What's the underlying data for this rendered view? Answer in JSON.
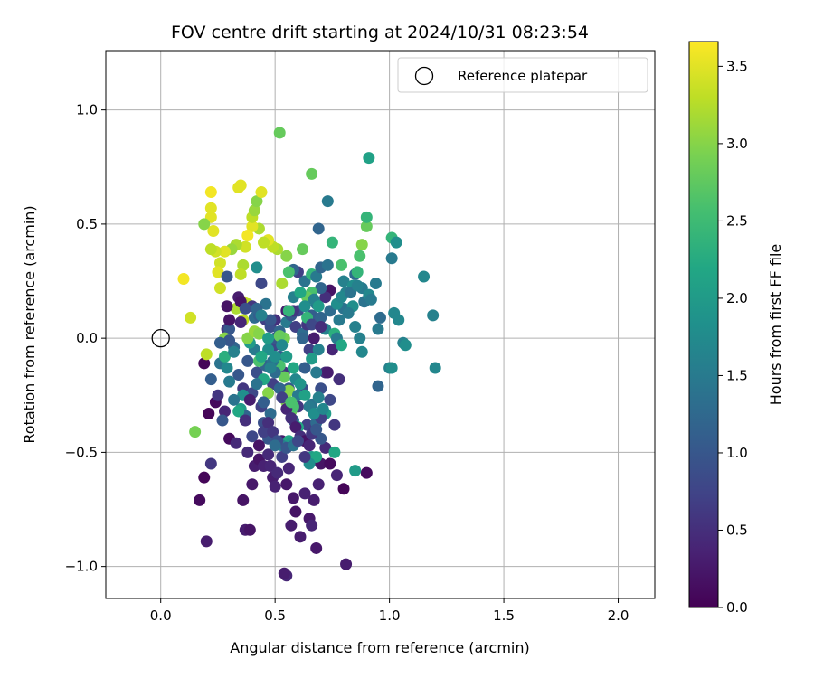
{
  "chart_data": {
    "type": "scatter",
    "title": "FOV centre drift starting at 2024/10/31 08:23:54",
    "xlabel": "Angular distance from reference (arcmin)",
    "ylabel": "Rotation from reference (arcmin)",
    "xlim": [
      -0.24,
      2.16
    ],
    "ylim": [
      -1.14,
      1.26
    ],
    "xticks": [
      0.0,
      0.5,
      1.0,
      1.5,
      2.0
    ],
    "xtick_labels": [
      "0.0",
      "0.5",
      "1.0",
      "1.5",
      "2.0"
    ],
    "yticks": [
      -1.0,
      -0.5,
      0.0,
      0.5,
      1.0
    ],
    "ytick_labels": [
      "−1.0",
      "−0.5",
      "0.0",
      "0.5",
      "1.0"
    ],
    "grid": true,
    "legend": {
      "placement": "top-right",
      "entries": [
        "Reference platepar"
      ]
    },
    "reference_point": {
      "x": 0.0,
      "y": 0.0
    },
    "colorbar": {
      "label": "Hours from first FF file",
      "min": 0.0,
      "max": 3.66,
      "ticks": [
        0.0,
        0.5,
        1.0,
        1.5,
        2.0,
        2.5,
        3.0,
        3.5
      ],
      "tick_labels": [
        "0.0",
        "0.5",
        "1.0",
        "1.5",
        "2.0",
        "2.5",
        "3.0",
        "3.5"
      ],
      "colormap": "viridis"
    },
    "points": [
      [
        0.19,
        -0.61,
        0.05
      ],
      [
        0.17,
        -0.71,
        0.1
      ],
      [
        0.2,
        -0.89,
        0.3
      ],
      [
        0.22,
        -0.55,
        0.6
      ],
      [
        0.19,
        -0.11,
        0.05
      ],
      [
        0.21,
        -0.33,
        0.05
      ],
      [
        0.24,
        -0.28,
        0.1
      ],
      [
        0.25,
        -0.25,
        0.6
      ],
      [
        0.28,
        -0.32,
        0.4
      ],
      [
        0.3,
        -0.44,
        0.1
      ],
      [
        0.33,
        -0.46,
        0.45
      ],
      [
        0.36,
        -0.71,
        0.2
      ],
      [
        0.37,
        -0.84,
        0.3
      ],
      [
        0.39,
        -0.84,
        0.2
      ],
      [
        0.4,
        -0.64,
        0.25
      ],
      [
        0.38,
        -0.5,
        0.45
      ],
      [
        0.41,
        -0.56,
        0.3
      ],
      [
        0.43,
        -0.53,
        0.2
      ],
      [
        0.45,
        -0.56,
        0.35
      ],
      [
        0.47,
        -0.51,
        0.45
      ],
      [
        0.48,
        -0.56,
        0.4
      ],
      [
        0.49,
        -0.61,
        0.3
      ],
      [
        0.51,
        -0.59,
        0.45
      ],
      [
        0.5,
        -0.65,
        0.35
      ],
      [
        0.53,
        -0.45,
        0.3
      ],
      [
        0.55,
        -0.64,
        0.25
      ],
      [
        0.56,
        -0.57,
        0.4
      ],
      [
        0.58,
        -0.7,
        0.25
      ],
      [
        0.57,
        -0.82,
        0.3
      ],
      [
        0.59,
        -0.76,
        0.2
      ],
      [
        0.61,
        -0.87,
        0.3
      ],
      [
        0.63,
        -0.68,
        0.35
      ],
      [
        0.65,
        -0.79,
        0.25
      ],
      [
        0.66,
        -0.82,
        0.4
      ],
      [
        0.68,
        -0.92,
        0.25
      ],
      [
        0.67,
        -0.71,
        0.3
      ],
      [
        0.69,
        -0.64,
        0.35
      ],
      [
        0.7,
        -0.55,
        0.2
      ],
      [
        0.72,
        -0.48,
        0.45
      ],
      [
        0.74,
        -0.55,
        0.1
      ],
      [
        0.77,
        -0.6,
        0.4
      ],
      [
        0.8,
        -0.66,
        0.05
      ],
      [
        0.81,
        -0.99,
        0.3
      ],
      [
        0.55,
        -1.04,
        0.4
      ],
      [
        0.54,
        -1.03,
        0.3
      ],
      [
        0.9,
        -0.59,
        0.1
      ],
      [
        0.85,
        -0.58,
        2.0
      ],
      [
        0.76,
        -0.5,
        2.2
      ],
      [
        0.66,
        -0.52,
        2.0
      ],
      [
        0.68,
        -0.52,
        2.2
      ],
      [
        0.65,
        -0.55,
        1.8
      ],
      [
        0.56,
        -0.45,
        2.2
      ],
      [
        0.57,
        -0.46,
        2.0
      ],
      [
        0.53,
        -0.47,
        1.6
      ],
      [
        0.15,
        -0.41,
        2.9
      ],
      [
        0.2,
        -0.07,
        3.3
      ],
      [
        0.22,
        -0.18,
        1.1
      ],
      [
        0.26,
        -0.11,
        1.4
      ],
      [
        0.28,
        -0.08,
        2.3
      ],
      [
        0.29,
        0.04,
        0.6
      ],
      [
        0.3,
        0.04,
        1.0
      ],
      [
        0.32,
        -0.04,
        1.2
      ],
      [
        0.34,
        -0.16,
        1.0
      ],
      [
        0.36,
        -0.22,
        0.6
      ],
      [
        0.35,
        -0.31,
        2.0
      ],
      [
        0.37,
        -0.34,
        1.2
      ],
      [
        0.4,
        -0.24,
        0.8
      ],
      [
        0.38,
        -0.1,
        1.0
      ],
      [
        0.42,
        -0.15,
        0.9
      ],
      [
        0.44,
        -0.3,
        0.7
      ],
      [
        0.45,
        -0.37,
        0.9
      ],
      [
        0.47,
        -0.44,
        1.0
      ],
      [
        0.48,
        -0.33,
        1.3
      ],
      [
        0.49,
        -0.2,
        0.7
      ],
      [
        0.46,
        -0.12,
        1.2
      ],
      [
        0.5,
        -0.03,
        0.8
      ],
      [
        0.52,
        -0.08,
        1.1
      ],
      [
        0.54,
        -0.15,
        0.6
      ],
      [
        0.56,
        -0.22,
        1.0
      ],
      [
        0.57,
        -0.29,
        0.8
      ],
      [
        0.58,
        -0.36,
        1.2
      ],
      [
        0.6,
        -0.3,
        0.6
      ],
      [
        0.62,
        -0.22,
        0.9
      ],
      [
        0.63,
        -0.13,
        1.1
      ],
      [
        0.65,
        -0.05,
        0.7
      ],
      [
        0.64,
        -0.38,
        0.7
      ],
      [
        0.66,
        -0.29,
        1.4
      ],
      [
        0.68,
        -0.37,
        1.3
      ],
      [
        0.7,
        -0.22,
        0.9
      ],
      [
        0.72,
        -0.15,
        0.5
      ],
      [
        0.74,
        -0.27,
        0.8
      ],
      [
        0.76,
        -0.38,
        0.6
      ],
      [
        0.78,
        -0.18,
        0.5
      ],
      [
        0.72,
        -0.33,
        2.0
      ],
      [
        0.7,
        -0.44,
        1.0
      ],
      [
        0.6,
        -0.39,
        2.2
      ],
      [
        0.55,
        -0.28,
        3.0
      ],
      [
        0.57,
        -0.32,
        2.8
      ],
      [
        0.58,
        -0.3,
        2.6
      ],
      [
        0.56,
        -0.23,
        3.0
      ],
      [
        0.54,
        -0.17,
        2.8
      ],
      [
        0.52,
        -0.12,
        2.6
      ],
      [
        0.47,
        -0.24,
        3.0
      ],
      [
        0.45,
        -0.18,
        2.2
      ],
      [
        0.43,
        -0.1,
        2.6
      ],
      [
        0.41,
        -0.05,
        1.5
      ],
      [
        0.39,
        -0.02,
        2.0
      ],
      [
        0.36,
        -0.25,
        1.8
      ],
      [
        0.34,
        -0.32,
        2.2
      ],
      [
        0.32,
        -0.27,
        1.4
      ],
      [
        0.3,
        -0.19,
        1.5
      ],
      [
        0.27,
        -0.36,
        1.0
      ],
      [
        0.38,
        0.0,
        3.0
      ],
      [
        0.41,
        0.03,
        3.1
      ],
      [
        0.36,
        0.08,
        3.3
      ],
      [
        0.33,
        0.13,
        3.2
      ],
      [
        0.36,
        0.16,
        3.4
      ],
      [
        0.38,
        0.15,
        3.3
      ],
      [
        0.41,
        0.09,
        1.3
      ],
      [
        0.43,
        0.1,
        1.1
      ],
      [
        0.46,
        0.08,
        0.7
      ],
      [
        0.48,
        0.05,
        0.9
      ],
      [
        0.5,
        0.0,
        1.0
      ],
      [
        0.52,
        0.03,
        1.2
      ],
      [
        0.54,
        0.0,
        2.9
      ],
      [
        0.55,
        0.07,
        1.5
      ],
      [
        0.57,
        0.1,
        1.0
      ],
      [
        0.59,
        0.05,
        0.7
      ],
      [
        0.6,
        0.12,
        0.9
      ],
      [
        0.62,
        0.02,
        1.3
      ],
      [
        0.64,
        0.06,
        0.6
      ],
      [
        0.66,
        0.1,
        1.1
      ],
      [
        0.68,
        0.15,
        1.4
      ],
      [
        0.7,
        0.09,
        1.2
      ],
      [
        0.72,
        0.04,
        1.6
      ],
      [
        0.74,
        0.12,
        1.3
      ],
      [
        0.76,
        0.02,
        2.3
      ],
      [
        0.78,
        0.08,
        1.5
      ],
      [
        0.8,
        0.13,
        1.4
      ],
      [
        0.74,
        0.21,
        0.2
      ],
      [
        0.72,
        0.18,
        0.5
      ],
      [
        0.7,
        0.22,
        1.2
      ],
      [
        0.66,
        0.2,
        2.6
      ],
      [
        0.64,
        0.18,
        2.8
      ],
      [
        0.63,
        0.25,
        1.4
      ],
      [
        0.6,
        0.29,
        0.7
      ],
      [
        0.58,
        0.3,
        1.2
      ],
      [
        0.56,
        0.29,
        2.6
      ],
      [
        0.55,
        0.36,
        3.0
      ],
      [
        0.53,
        0.24,
        3.2
      ],
      [
        0.51,
        0.39,
        3.2
      ],
      [
        0.49,
        0.4,
        3.3
      ],
      [
        0.47,
        0.43,
        3.5
      ],
      [
        0.45,
        0.42,
        3.3
      ],
      [
        0.43,
        0.48,
        3.2
      ],
      [
        0.42,
        0.31,
        1.8
      ],
      [
        0.4,
        0.49,
        3.5
      ],
      [
        0.38,
        0.45,
        3.6
      ],
      [
        0.37,
        0.4,
        3.4
      ],
      [
        0.36,
        0.32,
        3.2
      ],
      [
        0.35,
        0.28,
        3.3
      ],
      [
        0.33,
        0.41,
        3.2
      ],
      [
        0.31,
        0.39,
        3.1
      ],
      [
        0.28,
        0.38,
        3.5
      ],
      [
        0.26,
        0.33,
        3.4
      ],
      [
        0.25,
        0.29,
        3.5
      ],
      [
        0.24,
        0.38,
        3.4
      ],
      [
        0.22,
        0.39,
        3.3
      ],
      [
        0.23,
        0.47,
        3.5
      ],
      [
        0.22,
        0.53,
        3.5
      ],
      [
        0.19,
        0.5,
        3.0
      ],
      [
        0.22,
        0.57,
        3.5
      ],
      [
        0.22,
        0.64,
        3.6
      ],
      [
        0.34,
        0.66,
        3.5
      ],
      [
        0.35,
        0.67,
        3.5
      ],
      [
        0.4,
        0.53,
        3.3
      ],
      [
        0.41,
        0.56,
        3.1
      ],
      [
        0.42,
        0.6,
        3.0
      ],
      [
        0.44,
        0.64,
        3.5
      ],
      [
        0.52,
        0.9,
        2.8
      ],
      [
        0.66,
        0.72,
        2.8
      ],
      [
        0.73,
        0.6,
        1.5
      ],
      [
        0.69,
        0.48,
        1.2
      ],
      [
        0.62,
        0.39,
        2.8
      ],
      [
        0.66,
        0.28,
        2.4
      ],
      [
        0.68,
        0.27,
        1.5
      ],
      [
        0.7,
        0.31,
        1.2
      ],
      [
        0.73,
        0.32,
        1.4
      ],
      [
        0.75,
        0.42,
        2.4
      ],
      [
        0.79,
        0.32,
        2.6
      ],
      [
        0.8,
        0.25,
        1.6
      ],
      [
        0.81,
        0.2,
        1.6
      ],
      [
        0.84,
        0.23,
        1.8
      ],
      [
        0.85,
        0.28,
        1.3
      ],
      [
        0.86,
        0.29,
        2.4
      ],
      [
        0.87,
        0.36,
        2.6
      ],
      [
        0.88,
        0.41,
        3.0
      ],
      [
        0.88,
        0.22,
        1.5
      ],
      [
        0.89,
        0.16,
        1.4
      ],
      [
        0.91,
        0.19,
        1.7
      ],
      [
        0.92,
        0.17,
        1.5
      ],
      [
        0.9,
        0.49,
        2.8
      ],
      [
        0.9,
        0.53,
        2.4
      ],
      [
        0.91,
        0.79,
        2.1
      ],
      [
        0.94,
        0.24,
        1.5
      ],
      [
        0.95,
        0.04,
        1.5
      ],
      [
        0.96,
        0.09,
        1.3
      ],
      [
        0.87,
        0.0,
        1.6
      ],
      [
        0.88,
        -0.06,
        1.7
      ],
      [
        0.95,
        -0.21,
        1.2
      ],
      [
        1.01,
        0.44,
        2.4
      ],
      [
        1.03,
        0.42,
        1.8
      ],
      [
        1.01,
        0.35,
        1.5
      ],
      [
        1.02,
        0.11,
        1.7
      ],
      [
        1.04,
        0.08,
        1.7
      ],
      [
        1.06,
        -0.02,
        1.6
      ],
      [
        1.07,
        -0.03,
        1.8
      ],
      [
        1.0,
        -0.13,
        1.6
      ],
      [
        1.01,
        -0.13,
        1.8
      ],
      [
        1.15,
        0.27,
        1.7
      ],
      [
        1.19,
        0.1,
        1.6
      ],
      [
        1.2,
        -0.13,
        1.7
      ],
      [
        0.1,
        0.26,
        3.6
      ],
      [
        0.13,
        0.09,
        3.4
      ],
      [
        0.26,
        0.22,
        3.4
      ],
      [
        0.29,
        0.27,
        1.0
      ],
      [
        0.34,
        0.18,
        0.3
      ],
      [
        0.35,
        0.16,
        0.2
      ],
      [
        0.4,
        0.14,
        0.6
      ],
      [
        0.44,
        0.24,
        0.8
      ],
      [
        0.46,
        0.15,
        1.4
      ],
      [
        0.5,
        0.08,
        0.5
      ],
      [
        0.55,
        0.12,
        0.3
      ],
      [
        0.58,
        0.12,
        0.6
      ],
      [
        0.62,
        0.0,
        1.2
      ],
      [
        0.64,
        0.09,
        2.4
      ],
      [
        0.66,
        0.06,
        0.8
      ],
      [
        0.67,
        0.0,
        0.3
      ],
      [
        0.7,
        0.05,
        0.5
      ],
      [
        0.73,
        -0.15,
        0.3
      ],
      [
        0.75,
        -0.05,
        0.4
      ],
      [
        0.77,
        0.0,
        1.5
      ],
      [
        0.79,
        -0.03,
        2.2
      ],
      [
        0.52,
        0.01,
        2.8
      ],
      [
        0.48,
        0.08,
        1.0
      ],
      [
        0.42,
        0.13,
        1.2
      ],
      [
        0.37,
        0.13,
        0.9
      ],
      [
        0.29,
        0.14,
        0.2
      ],
      [
        0.35,
        0.07,
        0.4
      ],
      [
        0.3,
        0.08,
        0.2
      ],
      [
        0.28,
        0.0,
        3.0
      ],
      [
        0.3,
        -0.01,
        1.0
      ],
      [
        0.44,
        0.1,
        1.6
      ],
      [
        0.49,
        -0.1,
        1.4
      ],
      [
        0.5,
        -0.15,
        1.3
      ],
      [
        0.52,
        -0.22,
        1.2
      ],
      [
        0.53,
        -0.26,
        0.7
      ],
      [
        0.55,
        -0.31,
        0.4
      ],
      [
        0.57,
        -0.35,
        0.5
      ],
      [
        0.59,
        -0.39,
        0.3
      ],
      [
        0.61,
        -0.43,
        0.5
      ],
      [
        0.63,
        -0.45,
        0.2
      ],
      [
        0.65,
        -0.47,
        0.4
      ],
      [
        0.66,
        -0.42,
        0.6
      ],
      [
        0.68,
        -0.4,
        1.0
      ],
      [
        0.7,
        -0.35,
        0.7
      ],
      [
        0.39,
        -0.27,
        0.3
      ],
      [
        0.37,
        -0.36,
        0.5
      ],
      [
        0.4,
        -0.43,
        0.8
      ],
      [
        0.43,
        -0.47,
        0.2
      ],
      [
        0.45,
        -0.41,
        0.7
      ],
      [
        0.47,
        -0.37,
        0.5
      ],
      [
        0.49,
        -0.41,
        0.6
      ],
      [
        0.51,
        -0.45,
        0.9
      ],
      [
        0.53,
        -0.52,
        0.7
      ],
      [
        0.55,
        -0.48,
        1.0
      ],
      [
        0.58,
        -0.47,
        1.4
      ],
      [
        0.6,
        -0.45,
        0.8
      ],
      [
        0.63,
        -0.52,
        0.6
      ],
      [
        0.5,
        -0.47,
        1.3
      ],
      [
        0.6,
        -0.25,
        1.5
      ],
      [
        0.45,
        -0.28,
        1.1
      ],
      [
        0.42,
        -0.2,
        1.4
      ],
      [
        0.48,
        -0.13,
        1.6
      ],
      [
        0.5,
        -0.08,
        1.8
      ],
      [
        0.53,
        -0.03,
        1.7
      ],
      [
        0.55,
        -0.08,
        2.0
      ],
      [
        0.58,
        -0.13,
        2.2
      ],
      [
        0.59,
        -0.18,
        1.7
      ],
      [
        0.61,
        -0.2,
        1.9
      ],
      [
        0.63,
        -0.25,
        2.1
      ],
      [
        0.65,
        -0.3,
        1.5
      ],
      [
        0.67,
        -0.33,
        1.8
      ],
      [
        0.69,
        -0.26,
        1.6
      ],
      [
        0.71,
        -0.31,
        1.7
      ],
      [
        0.68,
        -0.15,
        1.5
      ],
      [
        0.66,
        -0.09,
        2.0
      ],
      [
        0.69,
        -0.05,
        1.6
      ],
      [
        0.57,
        -0.28,
        2.6
      ],
      [
        0.47,
        -0.05,
        1.8
      ],
      [
        0.44,
        -0.08,
        2.2
      ],
      [
        0.32,
        -0.06,
        1.6
      ],
      [
        0.26,
        -0.02,
        1.1
      ],
      [
        0.29,
        -0.13,
        1.7
      ],
      [
        0.43,
        0.02,
        3.0
      ],
      [
        0.47,
        0.0,
        2.0
      ],
      [
        0.56,
        0.12,
        2.4
      ],
      [
        0.58,
        0.18,
        1.6
      ],
      [
        0.61,
        0.2,
        2.2
      ],
      [
        0.63,
        0.14,
        1.8
      ],
      [
        0.67,
        0.17,
        1.6
      ],
      [
        0.69,
        0.14,
        2.0
      ],
      [
        0.77,
        0.15,
        1.8
      ],
      [
        0.79,
        0.18,
        1.7
      ],
      [
        0.83,
        0.2,
        1.4
      ],
      [
        0.84,
        0.14,
        1.8
      ],
      [
        0.82,
        0.11,
        1.5
      ],
      [
        0.85,
        0.05,
        1.6
      ],
      [
        0.86,
        0.23,
        1.6
      ]
    ]
  }
}
